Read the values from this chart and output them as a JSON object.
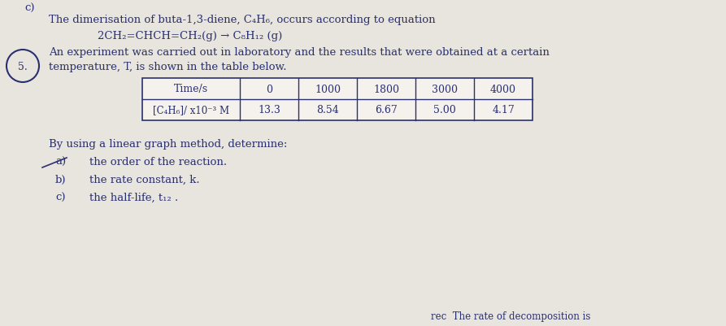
{
  "background_color": "#e8e4de",
  "paper_color": "#f0ece6",
  "text_color": "#2a3070",
  "table_border_color": "#2a3070",
  "circle_color": "#2a3070",
  "question_num": "5.",
  "line1": "The dimerisation of buta-1,3-diene, C₄H₆, occurs according to equation",
  "line2": "2CH₂=CHCH=CH₂(g) → C₈H₁₂ (g)",
  "line3": "An experiment was carried out in laboratory and the results that were obtained at a certain",
  "line4": "temperature, T, is shown in the table below.",
  "table_row1_header": "Time/s",
  "table_row2_header": "[C₄H₆]/ x10⁻³ M",
  "table_row1_data": [
    "0",
    "1000",
    "1800",
    "3000",
    "4000"
  ],
  "table_row2_data": [
    "13.3",
    "8.54",
    "6.67",
    "5.00",
    "4.17"
  ],
  "subtext": "By using a linear graph method, determine:",
  "item_a_label": "a)",
  "item_a_text": "the order of the reaction.",
  "item_b_label": "b)",
  "item_b_text": "the rate constant, k.",
  "item_c_label": "c)",
  "item_c_text": "the half-life, t₁₂ .",
  "bottom_text": "rec  The rate of decomposition is",
  "top_label": "c)",
  "font_size": 9.5,
  "font_size_table": 9.0
}
